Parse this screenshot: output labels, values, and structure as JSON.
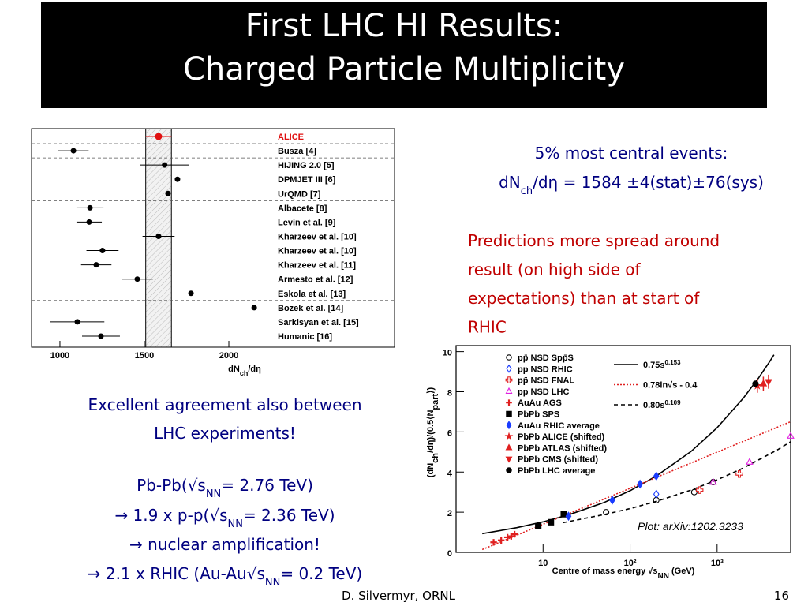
{
  "title": {
    "line1": "First LHC HI Results:",
    "line2": "Charged Particle Multiplicity"
  },
  "central": {
    "line1": "5% most central events:",
    "line2": [
      "dN",
      "ch",
      "/dη = 1584 ±4(stat)±76(sys)"
    ]
  },
  "predictions": [
    "Predictions more spread around",
    "result (on high side of",
    "expectations) than at start of",
    "RHIC"
  ],
  "agreement": [
    [
      "Excellent agreement also between"
    ],
    [
      "LHC experiments!"
    ],
    [
      "Pb-Pb(√s",
      "NN",
      "= 2.76 TeV)"
    ],
    [
      "→ 1.9 x p-p(√s",
      "NN",
      "= 2.36 TeV)"
    ],
    [
      "→ nuclear amplification!"
    ],
    [
      "→ 2.1 x RHIC (Au-Au√s",
      "NN",
      "= 0.2 TeV)"
    ]
  ],
  "footer": {
    "author": "D. Silvermyr, ORNL",
    "page": "16"
  },
  "chart_data": [
    {
      "type": "dot",
      "categories": [
        "ALICE",
        "Busza [4]",
        "HIJING 2.0 [5]",
        "DPMJET III [6]",
        "UrQMD [7]",
        "Albacete [8]",
        "Levin et al. [9]",
        "Kharzeev et al. [10]",
        "Kharzeev et al. [10]",
        "Kharzeev et al. [11]",
        "Armesto et al. [12]",
        "Eskola et al. [13]",
        "Bozek et al. [14]",
        "Sarkisyan et al. [15]",
        "Humanic [16]"
      ],
      "values": [
        1584,
        1080,
        1620,
        1696,
        1640,
        1178,
        1173,
        1584,
        1252,
        1215,
        1458,
        1776,
        2150,
        1103,
        1243
      ],
      "errors": [
        76,
        90,
        145,
        null,
        null,
        80,
        75,
        95,
        95,
        90,
        92,
        null,
        null,
        160,
        112
      ],
      "point_colors": [
        "#e01010",
        "#000000",
        "#000000",
        "#000000",
        "#000000",
        "#000000",
        "#000000",
        "#000000",
        "#000000",
        "#000000",
        "#000000",
        "#000000",
        "#000000",
        "#000000",
        "#000000"
      ],
      "xlabel": [
        "dN",
        "ch",
        "/dη"
      ],
      "xlim": [
        832,
        2981
      ],
      "xticks": [
        1000,
        1500,
        2000
      ]
    },
    {
      "type": "scatter",
      "xscale": "log",
      "xlabel": [
        "Centre of mass energy √s",
        "NN",
        "  (GeV)"
      ],
      "ylabel": [
        "(dN",
        "ch",
        "/dη)/(0.5⟨N",
        "part",
        "⟩)"
      ],
      "annotation": "Plot: arXiv:1202.3233",
      "xlim": [
        1,
        7000
      ],
      "ylim": [
        0,
        10.3
      ],
      "xticks": [
        {
          "value": 10,
          "label": "10"
        },
        {
          "value": 100,
          "label": "10²"
        },
        {
          "value": 1000,
          "label": "10³"
        }
      ],
      "yticks": [
        0,
        2,
        4,
        6,
        8,
        10
      ],
      "series": [
        {
          "name": "pp̄ NSD Spp̄S",
          "color": "#000000",
          "marker": "circle",
          "filled": false,
          "x": [
            53,
            200,
            546,
            900
          ],
          "values": [
            2.0,
            2.6,
            3.0,
            3.5
          ]
        },
        {
          "name": "pp NSD RHIC",
          "color": "#1a3cff",
          "marker": "diamond",
          "filled": false,
          "x": [
            200
          ],
          "values": [
            2.9
          ]
        },
        {
          "name": "pp̄ NSD FNAL",
          "color": "#e02020",
          "marker": "cross",
          "filled": false,
          "x": [
            630,
            1800
          ],
          "values": [
            3.1,
            3.9
          ]
        },
        {
          "name": "pp NSD LHC",
          "color": "#e020e0",
          "marker": "triangle",
          "filled": false,
          "x": [
            900,
            2360,
            7000
          ],
          "values": [
            3.5,
            4.5,
            5.8
          ]
        },
        {
          "name": "AuAu AGS",
          "color": "#e02020",
          "marker": "plus",
          "filled": true,
          "x": [
            2.7,
            3.3,
            3.9,
            4.3,
            4.7
          ],
          "values": [
            0.5,
            0.6,
            0.75,
            0.8,
            0.9
          ]
        },
        {
          "name": "PbPb SPS",
          "color": "#000000",
          "marker": "square",
          "filled": true,
          "x": [
            8.8,
            12.3,
            17.3
          ],
          "values": [
            1.3,
            1.5,
            1.9
          ]
        },
        {
          "name": "AuAu RHIC average",
          "color": "#1a3cff",
          "marker": "diamond",
          "filled": true,
          "x": [
            19.6,
            62.4,
            130,
            200
          ],
          "values": [
            1.8,
            2.6,
            3.4,
            3.8
          ]
        },
        {
          "name": "PbPb ALICE (shifted)",
          "color": "#e02020",
          "marker": "star",
          "filled": true,
          "x": [
            2900
          ],
          "values": [
            8.3
          ],
          "errors": [
            0.35
          ]
        },
        {
          "name": "PbPb ATLAS (shifted)",
          "color": "#e02020",
          "marker": "triangle",
          "filled": true,
          "x": [
            3400
          ],
          "values": [
            8.4
          ],
          "errors": [
            0.35
          ]
        },
        {
          "name": "PbPb CMS (shifted)",
          "color": "#e02020",
          "marker": "triangle-down",
          "filled": true,
          "x": [
            3900
          ],
          "values": [
            8.5
          ],
          "errors": [
            0.35
          ]
        },
        {
          "name": "PbPb LHC average",
          "color": "#000000",
          "marker": "circle",
          "filled": true,
          "x": [
            2760
          ],
          "values": [
            8.4
          ]
        }
      ],
      "curves": [
        {
          "name": "0.75s",
          "name_sup": "0.153",
          "color": "#000000",
          "line": "solid",
          "x": [
            2,
            5,
            10,
            20,
            50,
            100,
            200,
            500,
            1000,
            2000,
            3000,
            4000,
            4500
          ],
          "values": [
            0.93,
            1.23,
            1.52,
            1.88,
            2.48,
            3.07,
            3.8,
            5.02,
            6.21,
            7.68,
            8.69,
            9.49,
            9.84
          ]
        },
        {
          "name": "0.78ln√s - 0.4",
          "color": "#e02020",
          "line": "dotted",
          "x": [
            2,
            10,
            100,
            1000,
            7000
          ],
          "values": [
            0.14,
            1.4,
            3.19,
            4.99,
            6.51
          ]
        },
        {
          "name": "0.80s",
          "name_sup": "0.109",
          "color": "#000000",
          "line": "dashed",
          "x": [
            17,
            50,
            100,
            200,
            500,
            1000,
            2000,
            5000,
            7000
          ],
          "values": [
            1.48,
            1.88,
            2.18,
            2.54,
            3.1,
            3.61,
            4.2,
            5.12,
            5.51
          ]
        }
      ]
    }
  ]
}
